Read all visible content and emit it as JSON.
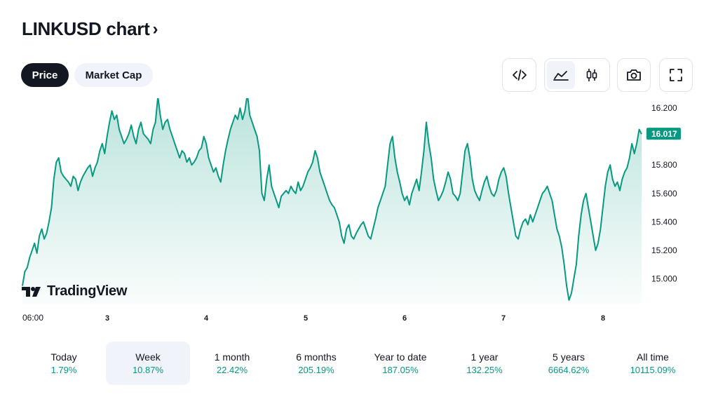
{
  "header": {
    "title": "LINKUSD chart"
  },
  "tabs": [
    {
      "label": "Price",
      "active": true
    },
    {
      "label": "Market Cap",
      "active": false
    }
  ],
  "toolbar": {
    "embed_icon": "embed-code-icon",
    "area_icon": "area-chart-icon",
    "candles_icon": "candlestick-icon",
    "snapshot_icon": "camera-icon",
    "fullscreen_icon": "fullscreen-icon"
  },
  "logo": {
    "text": "TradingView"
  },
  "chart_data": {
    "type": "area",
    "symbol": "LINKUSD",
    "x_tick_labels": [
      "06:00",
      "3",
      "4",
      "5",
      "6",
      "7",
      "8"
    ],
    "y_tick_labels": [
      "16.200",
      "15.800",
      "15.600",
      "15.400",
      "15.200",
      "15.000"
    ],
    "ylim": [
      14.82,
      16.22
    ],
    "last_price": "16.017",
    "line_color": "#089981",
    "values": [
      14.95,
      15.05,
      15.08,
      15.15,
      15.2,
      15.25,
      15.18,
      15.3,
      15.35,
      15.28,
      15.32,
      15.4,
      15.5,
      15.7,
      15.82,
      15.85,
      15.75,
      15.72,
      15.7,
      15.68,
      15.65,
      15.72,
      15.7,
      15.62,
      15.68,
      15.72,
      15.75,
      15.78,
      15.8,
      15.72,
      15.78,
      15.82,
      15.9,
      15.95,
      15.88,
      16.0,
      16.1,
      16.18,
      16.12,
      16.15,
      16.05,
      16.0,
      15.95,
      15.98,
      16.02,
      16.08,
      16.0,
      15.95,
      16.05,
      16.1,
      16.02,
      16.0,
      15.98,
      15.95,
      16.05,
      16.1,
      16.28,
      16.15,
      16.05,
      16.1,
      16.12,
      16.05,
      16.0,
      15.95,
      15.9,
      15.85,
      15.9,
      15.88,
      15.82,
      15.85,
      15.8,
      15.82,
      15.85,
      15.9,
      15.92,
      16.0,
      15.95,
      15.85,
      15.8,
      15.75,
      15.78,
      15.72,
      15.68,
      15.8,
      15.9,
      15.98,
      16.05,
      16.1,
      16.15,
      16.12,
      16.2,
      16.12,
      16.18,
      16.3,
      16.15,
      16.1,
      16.05,
      16.0,
      15.9,
      15.6,
      15.55,
      15.7,
      15.8,
      15.65,
      15.6,
      15.55,
      15.5,
      15.58,
      15.6,
      15.62,
      15.6,
      15.65,
      15.62,
      15.6,
      15.68,
      15.62,
      15.65,
      15.7,
      15.75,
      15.78,
      15.82,
      15.9,
      15.85,
      15.75,
      15.7,
      15.65,
      15.6,
      15.55,
      15.52,
      15.5,
      15.45,
      15.4,
      15.3,
      15.25,
      15.35,
      15.38,
      15.3,
      15.28,
      15.32,
      15.35,
      15.38,
      15.4,
      15.35,
      15.3,
      15.28,
      15.35,
      15.42,
      15.5,
      15.55,
      15.6,
      15.65,
      15.8,
      15.95,
      16.0,
      15.85,
      15.75,
      15.68,
      15.6,
      15.55,
      15.58,
      15.52,
      15.6,
      15.65,
      15.7,
      15.62,
      15.75,
      15.9,
      16.1,
      15.95,
      15.85,
      15.7,
      15.62,
      15.55,
      15.58,
      15.62,
      15.68,
      15.75,
      15.7,
      15.6,
      15.58,
      15.55,
      15.6,
      15.75,
      15.9,
      15.95,
      15.85,
      15.7,
      15.62,
      15.58,
      15.55,
      15.62,
      15.68,
      15.72,
      15.65,
      15.6,
      15.58,
      15.62,
      15.7,
      15.75,
      15.78,
      15.72,
      15.6,
      15.5,
      15.4,
      15.3,
      15.28,
      15.35,
      15.4,
      15.42,
      15.38,
      15.45,
      15.4,
      15.45,
      15.5,
      15.55,
      15.6,
      15.62,
      15.65,
      15.6,
      15.55,
      15.45,
      15.35,
      15.3,
      15.22,
      15.1,
      14.95,
      14.85,
      14.9,
      15.0,
      15.1,
      15.3,
      15.45,
      15.55,
      15.6,
      15.5,
      15.4,
      15.3,
      15.2,
      15.25,
      15.35,
      15.5,
      15.65,
      15.75,
      15.8,
      15.7,
      15.65,
      15.68,
      15.62,
      15.7,
      15.75,
      15.78,
      15.85,
      15.95,
      15.88,
      15.95,
      16.05,
      16.017
    ]
  },
  "periods": [
    {
      "label": "Today",
      "value": "1.79%",
      "selected": false
    },
    {
      "label": "Week",
      "value": "10.87%",
      "selected": true
    },
    {
      "label": "1 month",
      "value": "22.42%",
      "selected": false
    },
    {
      "label": "6 months",
      "value": "205.19%",
      "selected": false
    },
    {
      "label": "Year to date",
      "value": "187.05%",
      "selected": false
    },
    {
      "label": "1 year",
      "value": "132.25%",
      "selected": false
    },
    {
      "label": "5 years",
      "value": "6664.62%",
      "selected": false
    },
    {
      "label": "All time",
      "value": "10115.09%",
      "selected": false
    }
  ]
}
